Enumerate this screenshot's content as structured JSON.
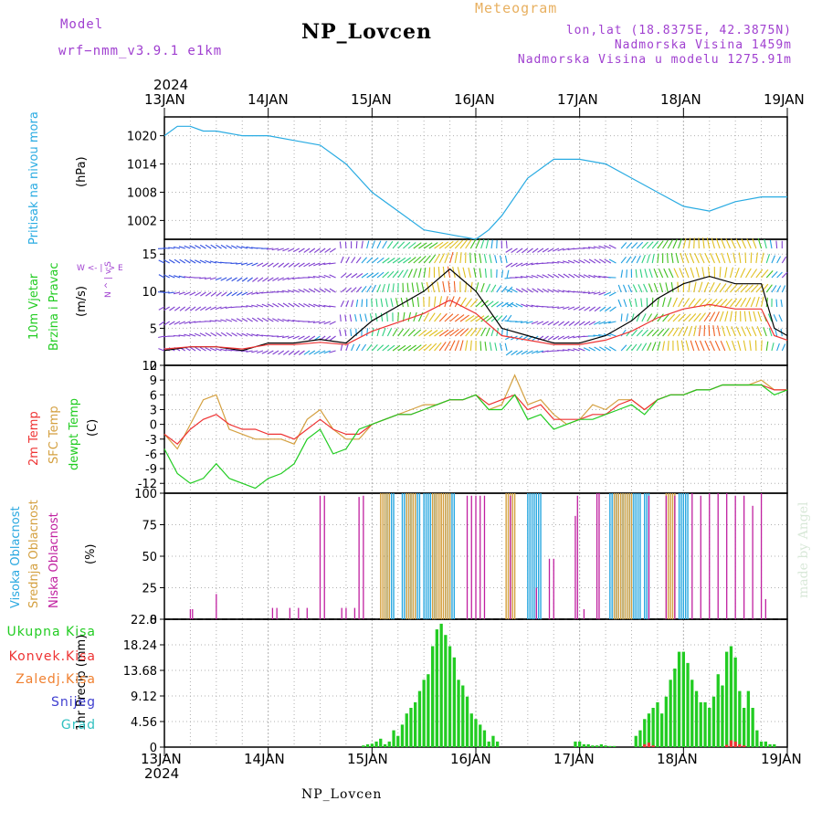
{
  "header": {
    "model_label": "Model",
    "model_name": "wrf−nmm_v3.9.1 e1km",
    "title": "NP_Lovcen",
    "meteogram": "Meteogram",
    "lonlat": "lon,lat (18.8375E, 42.3875N)",
    "elevation": "Nadmorska Visina 1459m",
    "model_elevation": "Nadmorska Visina u modelu 1275.91m",
    "footer": "NP_Lovcen",
    "credit": "made by Angel"
  },
  "colors": {
    "pressure": "#29abe2",
    "temp2m": "#ee3333",
    "sfc": "#d4a040",
    "dew": "#22cc22",
    "high_cloud": "#29a8e0",
    "mid_cloud": "#d4a040",
    "low_cloud": "#c020a0",
    "total_precip": "#22cc22",
    "conv_precip": "#ee3333",
    "wind_speed": "#000000",
    "gust": "#ee3333"
  },
  "time_axis": {
    "year": "2024",
    "labels": [
      "13JAN",
      "14JAN",
      "15JAN",
      "16JAN",
      "17JAN",
      "18JAN",
      "19JAN"
    ],
    "range_hours": [
      0,
      144
    ]
  },
  "panels": {
    "pressure": {
      "label": "Pritisak na nivou mora",
      "unit": "(hPa)"
    },
    "wind": {
      "label1": "10m Vjetar",
      "label2": "Brzina i Pravac",
      "unit": "(m/s)",
      "compass": "W <- | -> E",
      "compass_ns": "N ^ | v S"
    },
    "temp": {
      "label_t2": "2m Temp",
      "label_sfc": "SFC Temp",
      "label_dew": "dewpt Temp",
      "unit": "(C)"
    },
    "cloud": {
      "label_high": "Visoka Oblacnost",
      "label_mid": "Srednja Oblacnost",
      "label_low": "Niska Oblacnost",
      "unit": "(%)"
    },
    "precip": {
      "unit": "1hr Precip (mm)",
      "legend": [
        "Ukupna Kisa",
        "Konvek.Kisa",
        "Zaledj.Kisa",
        "Snijeg",
        "Grad"
      ]
    }
  },
  "chart_data": [
    {
      "type": "line",
      "x": [
        0,
        3,
        6,
        9,
        12,
        18,
        24,
        30,
        36,
        42,
        48,
        54,
        60,
        66,
        72,
        75,
        78,
        84,
        90,
        96,
        102,
        108,
        114,
        120,
        126,
        132,
        138,
        144
      ],
      "series": [
        {
          "name": "Pritisak na nivou mora",
          "values": [
            1020,
            1022,
            1022,
            1021,
            1021,
            1020,
            1020,
            1019,
            1018,
            1014,
            1008,
            1004,
            1000,
            999,
            998,
            1000,
            1003,
            1011,
            1015,
            1015,
            1014,
            1011,
            1008,
            1005,
            1004,
            1006,
            1007,
            1007
          ]
        }
      ],
      "yticks": [
        1002,
        1008,
        1014,
        1020
      ],
      "ylim": [
        998,
        1024
      ]
    },
    {
      "type": "line",
      "x": [
        0,
        6,
        12,
        18,
        24,
        30,
        36,
        42,
        48,
        54,
        60,
        66,
        72,
        78,
        84,
        90,
        96,
        102,
        108,
        114,
        120,
        126,
        132,
        138,
        141,
        144
      ],
      "series": [
        {
          "name": "wind speed",
          "values": [
            2,
            2.5,
            2.5,
            2,
            3,
            3,
            3.5,
            3,
            6,
            8,
            10,
            13,
            10,
            5,
            4,
            3,
            3,
            4,
            6,
            9,
            11,
            12,
            11,
            11,
            5,
            4
          ]
        }
      ],
      "yticks": [
        0,
        5,
        10,
        15
      ],
      "ylim": [
        0,
        17
      ]
    },
    {
      "type": "line",
      "x": [
        0,
        3,
        6,
        9,
        12,
        15,
        18,
        21,
        24,
        27,
        30,
        33,
        36,
        39,
        42,
        45,
        48,
        51,
        54,
        57,
        60,
        63,
        66,
        69,
        72,
        75,
        78,
        81,
        84,
        87,
        90,
        93,
        96,
        99,
        102,
        105,
        108,
        111,
        114,
        117,
        120,
        123,
        126,
        129,
        132,
        135,
        138,
        141,
        144
      ],
      "series": [
        {
          "name": "2m Temp",
          "values": [
            -2,
            -4,
            -1,
            1,
            2,
            0,
            -1,
            -1,
            -2,
            -2,
            -3,
            -1,
            1,
            -1,
            -2,
            -2,
            0,
            1,
            2,
            2,
            3,
            4,
            5,
            5,
            6,
            4,
            5,
            6,
            3,
            4,
            1,
            1,
            1,
            2,
            2,
            4,
            5,
            3,
            5,
            6,
            6,
            7,
            7,
            8,
            8,
            8,
            8,
            7,
            7
          ]
        },
        {
          "name": "SFC Temp",
          "values": [
            -2,
            -5,
            0,
            5,
            6,
            -1,
            -2,
            -3,
            -3,
            -3,
            -4,
            1,
            3,
            -1,
            -3,
            -3,
            0,
            1,
            2,
            3,
            4,
            4,
            5,
            5,
            6,
            3,
            4,
            10,
            4,
            5,
            2,
            0,
            1,
            4,
            3,
            5,
            5,
            3,
            5,
            6,
            6,
            7,
            7,
            8,
            8,
            8,
            9,
            7,
            7
          ]
        },
        {
          "name": "dewpt Temp",
          "values": [
            -5,
            -10,
            -12,
            -11,
            -8,
            -11,
            -12,
            -13,
            -11,
            -10,
            -8,
            -3,
            -1,
            -6,
            -5,
            -1,
            0,
            1,
            2,
            2,
            3,
            4,
            5,
            5,
            6,
            3,
            3,
            6,
            1,
            2,
            -1,
            0,
            1,
            1,
            2,
            3,
            4,
            2,
            5,
            6,
            6,
            7,
            7,
            8,
            8,
            8,
            8,
            6,
            7
          ]
        }
      ],
      "yticks": [
        -12,
        -9,
        -6,
        -3,
        0,
        3,
        6,
        9,
        12
      ],
      "ylim": [
        -14,
        12
      ]
    },
    {
      "type": "bar",
      "series": [
        {
          "name": "Visoka Oblacnost",
          "segments": [
            [
              51,
              53
            ],
            [
              55,
              59
            ],
            [
              60,
              63
            ],
            [
              65,
              67
            ],
            [
              84,
              87
            ],
            [
              103,
              110
            ],
            [
              111,
              112
            ],
            [
              119,
              121
            ]
          ],
          "value": 100
        },
        {
          "name": "Srednja Oblacnost",
          "segments": [
            [
              50,
              52
            ],
            [
              56,
              58
            ],
            [
              62,
              64
            ],
            [
              64,
              66
            ],
            [
              79,
              81
            ],
            [
              104,
              108
            ],
            [
              116,
              118
            ]
          ],
          "value": 100
        },
        {
          "name": "Niska Oblacnost",
          "spikes": [
            [
              6,
              8
            ],
            [
              6.5,
              8
            ],
            [
              12,
              20
            ],
            [
              25,
              9
            ],
            [
              26,
              9
            ],
            [
              29,
              9
            ],
            [
              31,
              9
            ],
            [
              33,
              9
            ],
            [
              36,
              98
            ],
            [
              37,
              98
            ],
            [
              41,
              9
            ],
            [
              42,
              9
            ],
            [
              44,
              9
            ],
            [
              45,
              97
            ],
            [
              46,
              98
            ],
            [
              70,
              98
            ],
            [
              71,
              98
            ],
            [
              72,
              98
            ],
            [
              73,
              98
            ],
            [
              74,
              98
            ],
            [
              80,
              98
            ],
            [
              86,
              25
            ],
            [
              89,
              48
            ],
            [
              90,
              48
            ],
            [
              95,
              82
            ],
            [
              95.5,
              98
            ],
            [
              97,
              8
            ],
            [
              100,
              100
            ],
            [
              100.5,
              100
            ],
            [
              112,
              98
            ],
            [
              116,
              98
            ],
            [
              118,
              98
            ],
            [
              122,
              100
            ],
            [
              124,
              98
            ],
            [
              126,
              100
            ],
            [
              128,
              100
            ],
            [
              130,
              100
            ],
            [
              132,
              98
            ],
            [
              134,
              98
            ],
            [
              136,
              90
            ],
            [
              138,
              100
            ],
            [
              139,
              16
            ]
          ]
        }
      ],
      "yticks": [
        0,
        25,
        50,
        75,
        100
      ],
      "ylim": [
        0,
        100
      ]
    },
    {
      "type": "bar",
      "x": [
        46,
        47,
        48,
        49,
        50,
        51,
        52,
        53,
        54,
        55,
        56,
        57,
        58,
        59,
        60,
        61,
        62,
        63,
        64,
        65,
        66,
        67,
        68,
        69,
        70,
        71,
        72,
        73,
        74,
        75,
        76,
        77,
        95,
        96,
        97,
        98,
        99,
        100,
        101,
        102,
        103,
        104,
        109,
        110,
        111,
        112,
        113,
        114,
        115,
        116,
        117,
        118,
        119,
        120,
        121,
        122,
        123,
        124,
        125,
        126,
        127,
        128,
        129,
        130,
        131,
        132,
        133,
        134,
        135,
        136,
        137,
        138,
        139,
        140,
        141
      ],
      "series": [
        {
          "name": "Ukupna Kisa",
          "values": [
            0.3,
            0.5,
            0.6,
            1,
            1.5,
            0.5,
            1,
            3,
            2,
            4,
            6,
            7,
            8,
            10,
            12,
            13,
            18,
            21,
            22,
            20,
            18,
            16,
            12,
            11,
            9,
            6,
            5,
            4,
            3,
            1,
            2,
            1,
            1,
            1,
            0.5,
            0.5,
            0.3,
            0.3,
            0.5,
            0.3,
            0.2,
            0.2,
            2,
            3,
            5,
            6,
            7,
            8,
            6,
            9,
            12,
            14,
            17,
            17,
            15,
            12,
            10,
            8,
            8,
            7,
            9,
            13,
            11,
            17,
            18,
            16,
            10,
            7,
            10,
            7,
            3,
            1,
            1,
            0.5,
            0.5
          ]
        },
        {
          "name": "Konvek.Kisa",
          "values": [
            0,
            0,
            0,
            0,
            0,
            0,
            0,
            0,
            0,
            0,
            0,
            0,
            0,
            0,
            0,
            0,
            0,
            0,
            0,
            0,
            0,
            0,
            0,
            0,
            0,
            0,
            0,
            0,
            0,
            0,
            0,
            0,
            0,
            0,
            0,
            0,
            0,
            0,
            0,
            0,
            0,
            0,
            0,
            0,
            0.5,
            0.8,
            0.3,
            0,
            0,
            0,
            0,
            0,
            0,
            0,
            0,
            0,
            0,
            0,
            0,
            0,
            0,
            0,
            0,
            0.4,
            1.2,
            1,
            0.5,
            0.3,
            0,
            0,
            0,
            0,
            0,
            0,
            0
          ]
        }
      ],
      "yticks": [
        0,
        4.56,
        9.12,
        13.68,
        18.24,
        22.8
      ],
      "ylim": [
        0,
        22.8
      ]
    }
  ]
}
